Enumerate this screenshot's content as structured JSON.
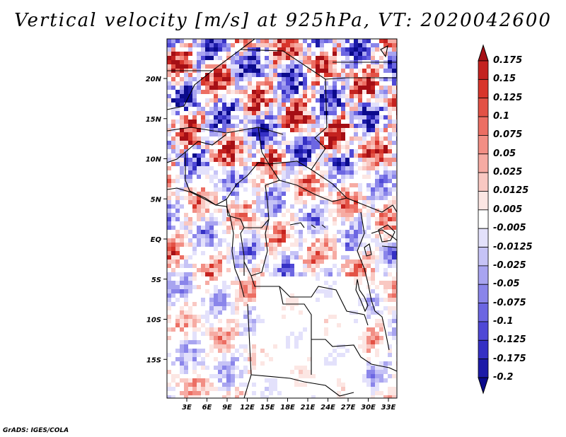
{
  "title": "Vertical velocity [m/s] at 925hPa, VT: 2020042600",
  "credit": "GrADS: IGES/COLA",
  "map": {
    "lat_ticks": [
      "20N",
      "15N",
      "10N",
      "5N",
      "EQ",
      "5S",
      "10S",
      "15S"
    ],
    "lon_ticks": [
      "3E",
      "6E",
      "9E",
      "12E",
      "15E",
      "18E",
      "21E",
      "24E",
      "27E",
      "30E",
      "33E"
    ]
  },
  "colorbar": {
    "labels": [
      "0.175",
      "0.15",
      "0.125",
      "0.1",
      "0.075",
      "0.05",
      "0.025",
      "0.0125",
      "0.005",
      "-0.005",
      "-0.0125",
      "-0.025",
      "-0.05",
      "-0.075",
      "-0.1",
      "-0.125",
      "-0.175",
      "-0.2"
    ],
    "colors": [
      "#a50f15",
      "#c4221f",
      "#d8352b",
      "#e35145",
      "#ec6e63",
      "#f28e84",
      "#f6aba3",
      "#f9c8c2",
      "#fce6e3",
      "#ffffff",
      "#e3e1fb",
      "#c6c3f6",
      "#a8a4f0",
      "#8a85ea",
      "#6c66e2",
      "#4f48d6",
      "#3530c4",
      "#1c1aa8",
      "#0b0a8c"
    ]
  }
}
